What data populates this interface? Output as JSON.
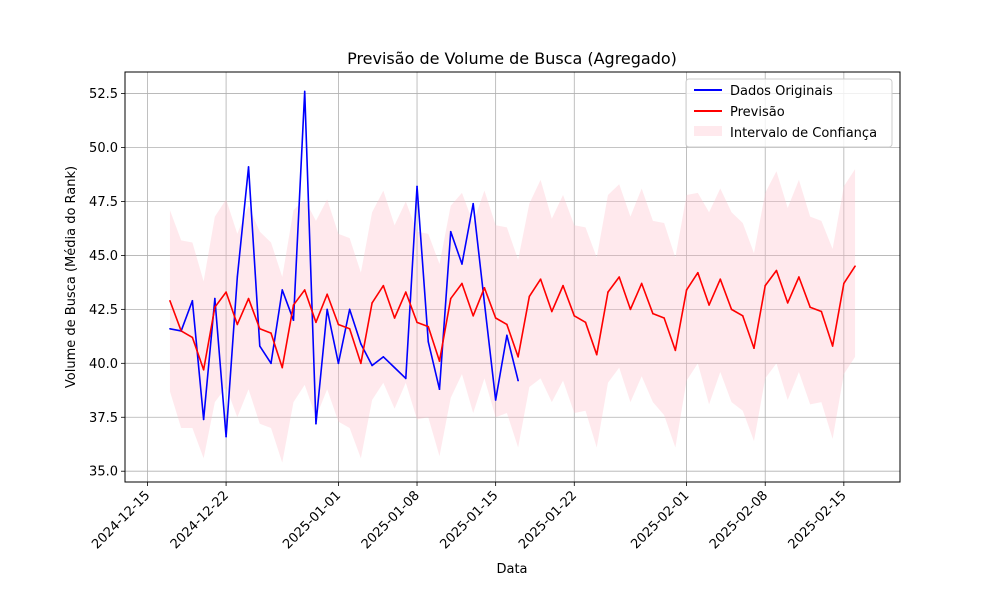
{
  "chart_data": {
    "type": "line",
    "title": "Previsão de Volume de Busca (Agregado)",
    "xlabel": "Data",
    "ylabel": "Volume de Busca (Média do Rank)",
    "xlim": [
      "2024-12-13",
      "2025-02-20"
    ],
    "ylim": [
      34.5,
      53.5
    ],
    "x_ticks": [
      "2024-12-15",
      "2024-12-22",
      "2025-01-01",
      "2025-01-08",
      "2025-01-15",
      "2025-01-22",
      "2025-02-01",
      "2025-02-08",
      "2025-02-15"
    ],
    "y_ticks": [
      35.0,
      37.5,
      40.0,
      42.5,
      45.0,
      47.5,
      50.0,
      52.5
    ],
    "grid": true,
    "legend_position": "top-right",
    "series": [
      {
        "name": "Dados Originais",
        "kind": "line",
        "color": "#0000ff",
        "x": [
          "2024-12-17",
          "2024-12-18",
          "2024-12-19",
          "2024-12-20",
          "2024-12-21",
          "2024-12-22",
          "2024-12-23",
          "2024-12-24",
          "2024-12-25",
          "2024-12-26",
          "2024-12-27",
          "2024-12-28",
          "2024-12-29",
          "2024-12-30",
          "2024-12-31",
          "2025-01-01",
          "2025-01-02",
          "2025-01-03",
          "2025-01-04",
          "2025-01-05",
          "2025-01-06",
          "2025-01-07",
          "2025-01-08",
          "2025-01-09",
          "2025-01-10",
          "2025-01-11",
          "2025-01-12",
          "2025-01-13",
          "2025-01-14",
          "2025-01-15",
          "2025-01-16",
          "2025-01-17"
        ],
        "values": [
          41.6,
          41.5,
          42.9,
          37.4,
          43.0,
          36.6,
          44.0,
          49.1,
          40.8,
          40.0,
          43.4,
          42.0,
          52.6,
          37.2,
          42.5,
          40.0,
          42.5,
          40.9,
          39.9,
          40.3,
          39.8,
          39.3,
          48.2,
          41.0,
          38.8,
          46.1,
          44.6,
          47.4,
          42.8,
          38.3,
          41.3,
          39.2
        ]
      },
      {
        "name": "Previsão",
        "kind": "line",
        "color": "#ff0000",
        "x": [
          "2024-12-17",
          "2024-12-18",
          "2024-12-19",
          "2024-12-20",
          "2024-12-21",
          "2024-12-22",
          "2024-12-23",
          "2024-12-24",
          "2024-12-25",
          "2024-12-26",
          "2024-12-27",
          "2024-12-28",
          "2024-12-29",
          "2024-12-30",
          "2024-12-31",
          "2025-01-01",
          "2025-01-02",
          "2025-01-03",
          "2025-01-04",
          "2025-01-05",
          "2025-01-06",
          "2025-01-07",
          "2025-01-08",
          "2025-01-09",
          "2025-01-10",
          "2025-01-11",
          "2025-01-12",
          "2025-01-13",
          "2025-01-14",
          "2025-01-15",
          "2025-01-16",
          "2025-01-17",
          "2025-01-18",
          "2025-01-19",
          "2025-01-20",
          "2025-01-21",
          "2025-01-22",
          "2025-01-23",
          "2025-01-24",
          "2025-01-25",
          "2025-01-26",
          "2025-01-27",
          "2025-01-28",
          "2025-01-29",
          "2025-01-30",
          "2025-01-31",
          "2025-02-01",
          "2025-02-02",
          "2025-02-03",
          "2025-02-04",
          "2025-02-05",
          "2025-02-06",
          "2025-02-07",
          "2025-02-08",
          "2025-02-09",
          "2025-02-10",
          "2025-02-11",
          "2025-02-12",
          "2025-02-13",
          "2025-02-14",
          "2025-02-15",
          "2025-02-16"
        ],
        "values": [
          42.9,
          41.5,
          41.2,
          39.7,
          42.6,
          43.3,
          41.8,
          43.0,
          41.6,
          41.4,
          39.8,
          42.7,
          43.4,
          41.9,
          43.2,
          41.8,
          41.6,
          40.0,
          42.8,
          43.6,
          42.1,
          43.3,
          41.9,
          41.7,
          40.1,
          43.0,
          43.7,
          42.2,
          43.5,
          42.1,
          41.8,
          40.3,
          43.1,
          43.9,
          42.4,
          43.6,
          42.2,
          41.9,
          40.4,
          43.3,
          44.0,
          42.5,
          43.7,
          42.3,
          42.1,
          40.6,
          43.4,
          44.2,
          42.7,
          43.9,
          42.5,
          42.2,
          40.7,
          43.6,
          44.3,
          42.8,
          44.0,
          42.6,
          42.4,
          40.8,
          43.7,
          44.5
        ]
      }
    ],
    "confidence_band": {
      "name": "Intervalo de Confiança",
      "color": "#ffc0cb",
      "opacity": 0.35,
      "lower": [
        38.7,
        37.0,
        37.0,
        35.6,
        38.2,
        38.9,
        37.5,
        38.8,
        37.2,
        37.0,
        35.4,
        38.2,
        39.0,
        37.5,
        38.8,
        37.3,
        37.0,
        35.6,
        38.3,
        39.1,
        37.9,
        39.1,
        37.4,
        37.5,
        35.7,
        38.4,
        39.5,
        37.7,
        39.3,
        37.5,
        37.7,
        36.1,
        38.9,
        39.3,
        38.2,
        39.2,
        37.7,
        37.8,
        36.1,
        39.1,
        39.8,
        38.2,
        39.4,
        38.2,
        37.6,
        36.1,
        39.2,
        40.0,
        38.1,
        39.6,
        38.2,
        37.8,
        36.4,
        39.3,
        40.0,
        38.3,
        39.6,
        38.1,
        38.2,
        36.5,
        39.5,
        40.3
      ],
      "upper": [
        47.1,
        45.7,
        45.6,
        43.8,
        46.8,
        47.6,
        46.0,
        47.3,
        46.1,
        45.6,
        44.0,
        47.1,
        47.6,
        46.6,
        47.6,
        46.0,
        45.8,
        44.2,
        47.0,
        48.0,
        46.4,
        47.5,
        46.1,
        46.0,
        44.6,
        47.3,
        47.9,
        46.5,
        48.0,
        46.4,
        46.3,
        44.8,
        47.4,
        48.5,
        46.7,
        47.8,
        46.4,
        46.3,
        44.9,
        47.8,
        48.3,
        46.8,
        48.1,
        46.6,
        46.5,
        44.9,
        47.8,
        47.9,
        47.0,
        48.1,
        47.0,
        46.5,
        45.1,
        47.9,
        48.9,
        47.2,
        48.5,
        46.8,
        46.6,
        45.3,
        48.2,
        49.0
      ]
    }
  }
}
